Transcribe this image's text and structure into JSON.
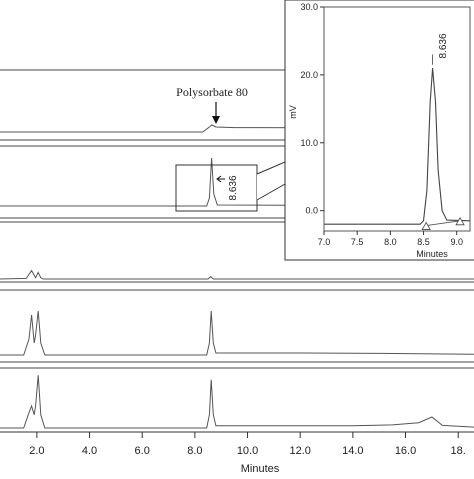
{
  "chart_data": [
    {
      "type": "line",
      "title": "",
      "xlabel": "Minutes",
      "ylabel": "",
      "xlim": [
        0.6,
        18.6
      ],
      "xticks": [
        "2.0",
        "4.0",
        "6.0",
        "8.0",
        "10.0",
        "12.0",
        "14.0",
        "16.0",
        "18."
      ],
      "xtick_values": [
        2,
        4,
        6,
        8,
        10,
        12,
        14,
        16,
        18
      ],
      "panels": [
        {
          "annotation": "Polysorbate 80",
          "series": [
            {
              "x": [
                0.6,
                8.3,
                8.55,
                8.65,
                8.8,
                9.5,
                18.6
              ],
              "y": [
                0.0,
                0.0,
                0.25,
                0.35,
                0.25,
                0.22,
                0.2
              ]
            }
          ]
        },
        {
          "annotation": "8.636",
          "series": [
            {
              "x": [
                0.6,
                8.45,
                8.55,
                8.636,
                8.72,
                8.85,
                18.6
              ],
              "y": [
                0.0,
                0.0,
                0.4,
                2.4,
                0.6,
                0.05,
                0.0
              ]
            }
          ]
        },
        {
          "series": [
            {
              "x": [
                0.6,
                1.6,
                1.8,
                1.95,
                2.05,
                2.15,
                2.25,
                8.5,
                8.6,
                8.7,
                18.6
              ],
              "y": [
                0.0,
                0.05,
                0.7,
                0.1,
                0.55,
                0.1,
                0.0,
                0.0,
                0.2,
                0.0,
                0.0
              ]
            }
          ]
        },
        {
          "series": [
            {
              "x": [
                0.6,
                1.5,
                1.7,
                1.8,
                1.9,
                1.95,
                2.05,
                2.15,
                2.3,
                8.45,
                8.55,
                8.62,
                8.7,
                8.8,
                12,
                15,
                16.5,
                18.6
              ],
              "y": [
                0.0,
                0.0,
                0.4,
                1.0,
                0.3,
                0.5,
                1.1,
                0.3,
                0.0,
                0.0,
                0.3,
                1.1,
                0.3,
                0.05,
                0.05,
                0.04,
                0.03,
                0.02
              ]
            }
          ]
        },
        {
          "series": [
            {
              "x": [
                0.6,
                1.5,
                1.7,
                1.8,
                1.9,
                1.95,
                2.05,
                2.15,
                2.3,
                8.45,
                8.55,
                8.62,
                8.7,
                8.8,
                10,
                12,
                14,
                15.5,
                16.5,
                17,
                17.4,
                18.6
              ],
              "y": [
                0.0,
                0.0,
                0.35,
                0.5,
                0.3,
                0.5,
                1.2,
                0.3,
                0.0,
                0.0,
                0.3,
                1.1,
                0.3,
                0.05,
                0.05,
                0.05,
                0.05,
                0.07,
                0.12,
                0.25,
                0.06,
                0.02
              ]
            }
          ]
        }
      ]
    },
    {
      "type": "line",
      "title": "",
      "xlabel": "Minutes",
      "ylabel": "mV",
      "xlim": [
        7.0,
        9.2
      ],
      "ylim": [
        -3.0,
        30.0
      ],
      "xticks": [
        "7.0",
        "7.5",
        "8.0",
        "8.5",
        "9.0"
      ],
      "xtick_values": [
        7.0,
        7.5,
        8.0,
        8.5,
        9.0
      ],
      "yticks": [
        "30.0",
        "20.0",
        "10.0",
        "0.0"
      ],
      "ytick_values": [
        30,
        20,
        10,
        0
      ],
      "peak_label": "8.636",
      "series": [
        {
          "x": [
            7.0,
            8.45,
            8.5,
            8.55,
            8.6,
            8.636,
            8.68,
            8.72,
            8.78,
            8.85,
            9.2
          ],
          "y": [
            -2.0,
            -2.0,
            -1.5,
            3.0,
            16.0,
            21.0,
            16.0,
            6.0,
            0.0,
            -1.4,
            -1.5
          ]
        }
      ],
      "baseline_markers": [
        {
          "x": 8.54,
          "y": -2.2
        },
        {
          "x": 9.05,
          "y": -1.5
        }
      ]
    }
  ]
}
